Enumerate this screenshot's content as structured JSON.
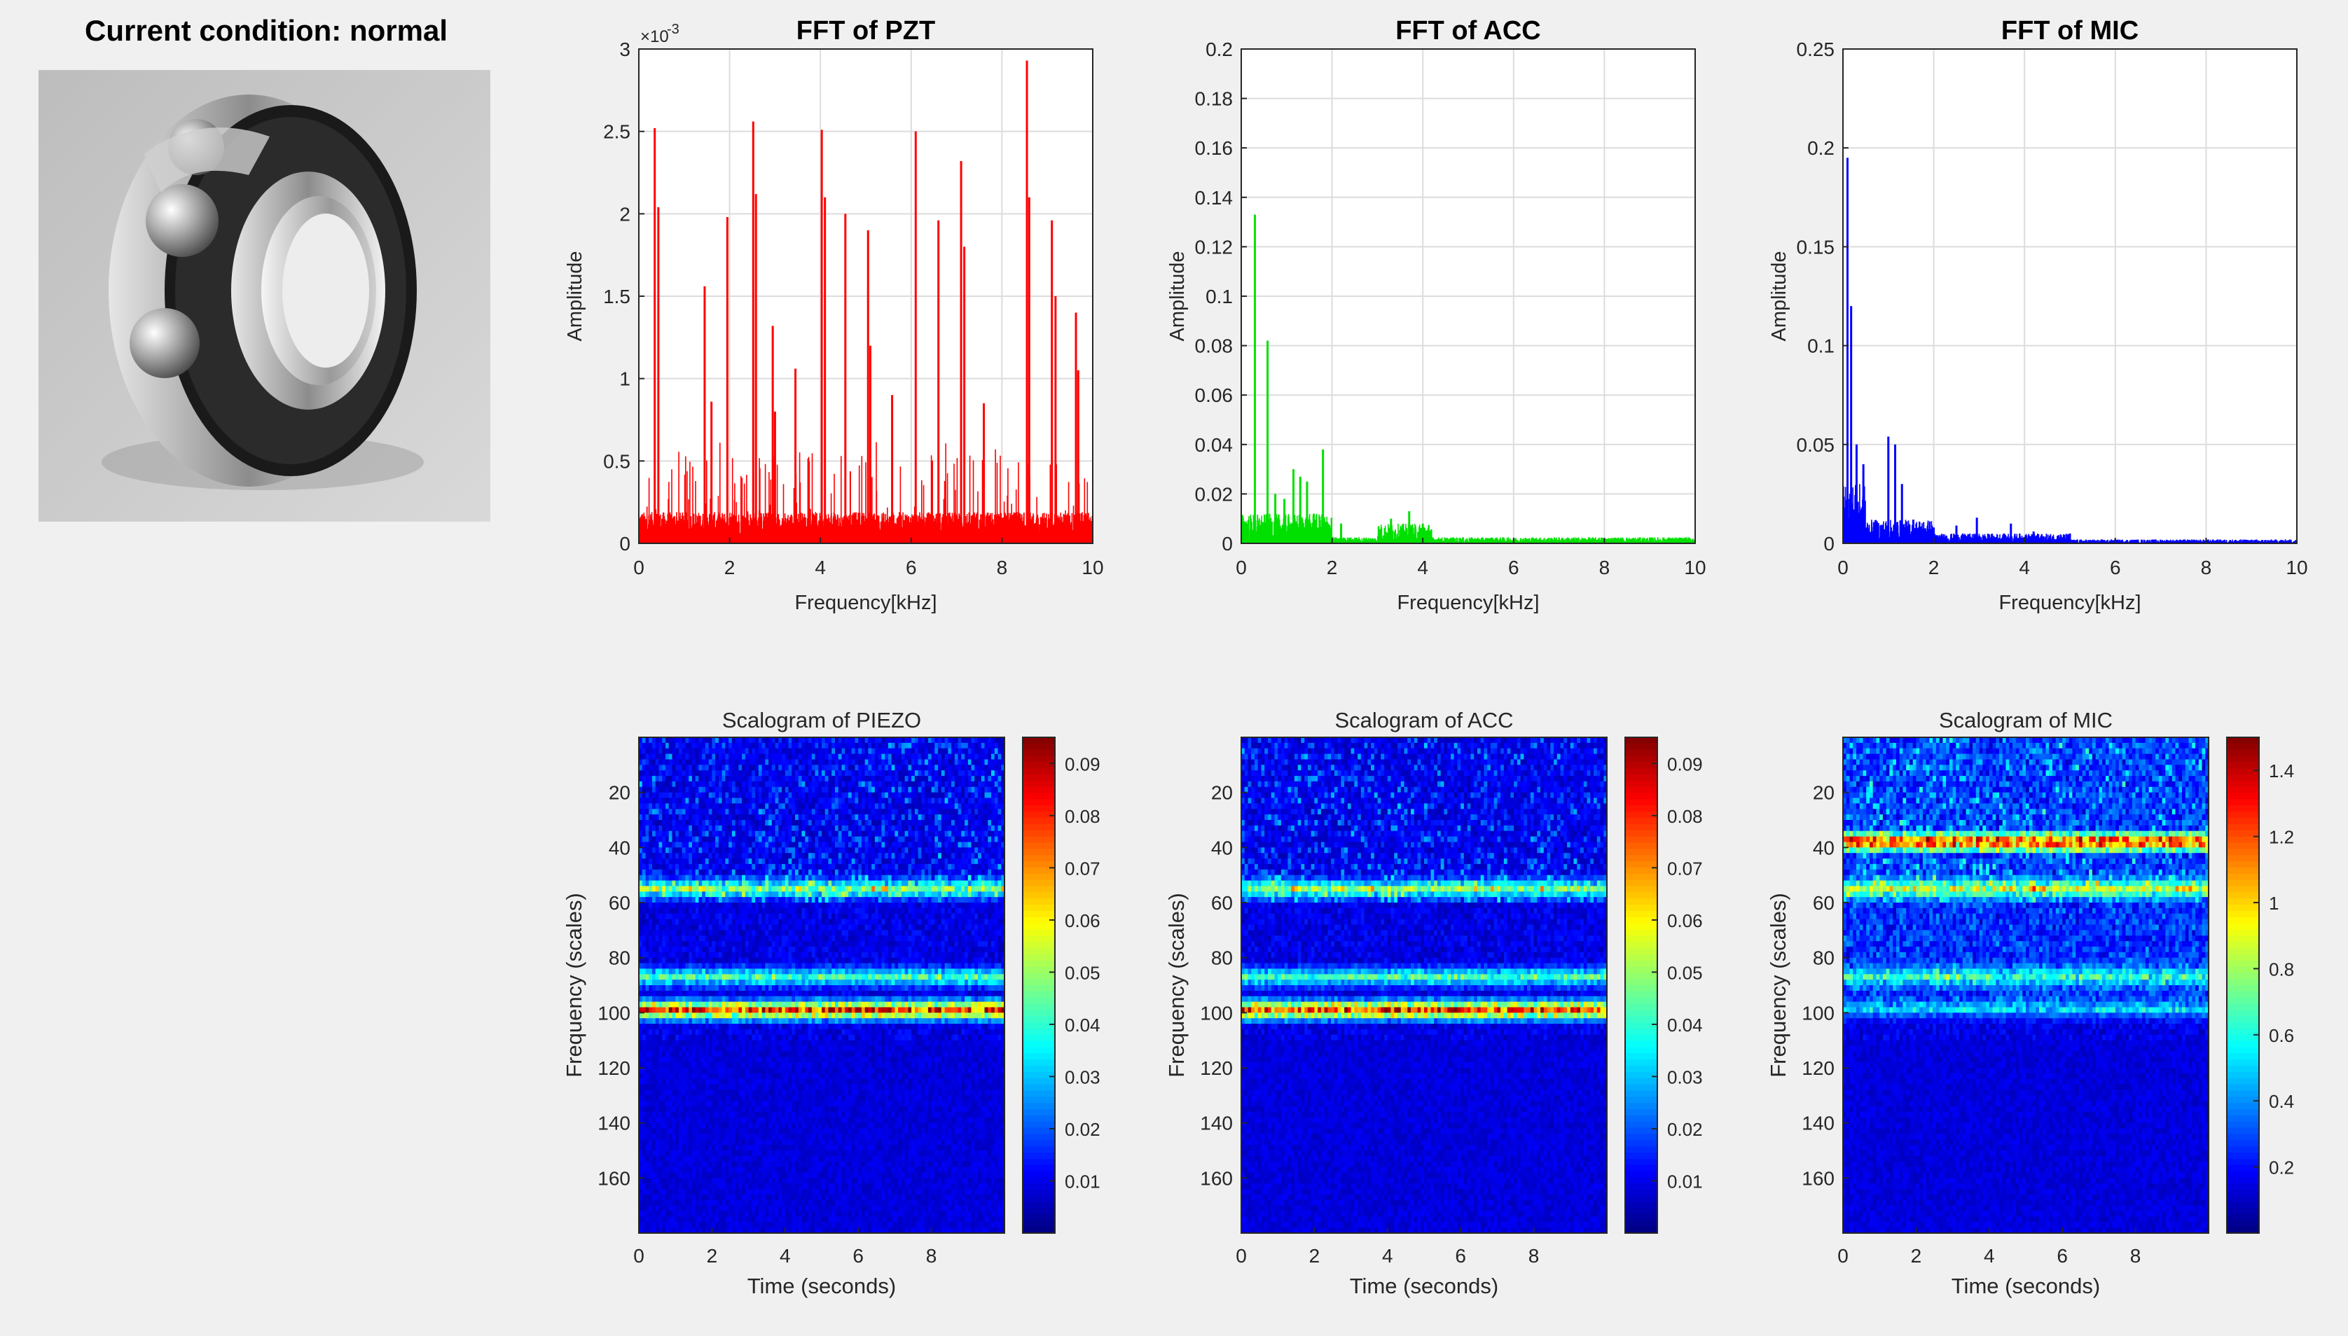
{
  "condition": {
    "label": "Current condition: normal"
  },
  "chart_data": [
    {
      "type": "line",
      "title": "FFT of PZT",
      "xlabel": "Frequency[kHz]",
      "ylabel": "Amplitude",
      "xlim": [
        0,
        10
      ],
      "ylim": [
        0,
        3
      ],
      "exponent_label": "×10",
      "exponent_power": "-3",
      "xticks": [
        0,
        2,
        4,
        6,
        8,
        10
      ],
      "yticks": [
        0,
        0.5,
        1,
        1.5,
        2,
        2.5,
        3
      ],
      "color": "#ff0000",
      "grid": true,
      "noise_floor": [
        0.1,
        0.45
      ],
      "peaks": [
        {
          "x": 0.35,
          "y": 2.52
        },
        {
          "x": 0.43,
          "y": 2.04
        },
        {
          "x": 1.45,
          "y": 1.56
        },
        {
          "x": 1.6,
          "y": 0.86
        },
        {
          "x": 1.95,
          "y": 1.98
        },
        {
          "x": 2.52,
          "y": 2.56
        },
        {
          "x": 2.58,
          "y": 2.12
        },
        {
          "x": 2.95,
          "y": 1.32
        },
        {
          "x": 3.0,
          "y": 0.8
        },
        {
          "x": 3.45,
          "y": 1.06
        },
        {
          "x": 4.03,
          "y": 2.51
        },
        {
          "x": 4.1,
          "y": 2.1
        },
        {
          "x": 4.55,
          "y": 2.0
        },
        {
          "x": 5.05,
          "y": 1.9
        },
        {
          "x": 5.1,
          "y": 1.2
        },
        {
          "x": 5.58,
          "y": 0.9
        },
        {
          "x": 6.1,
          "y": 2.5
        },
        {
          "x": 6.6,
          "y": 1.96
        },
        {
          "x": 7.1,
          "y": 2.32
        },
        {
          "x": 7.17,
          "y": 1.8
        },
        {
          "x": 7.6,
          "y": 0.85
        },
        {
          "x": 8.55,
          "y": 2.93
        },
        {
          "x": 8.6,
          "y": 2.1
        },
        {
          "x": 9.1,
          "y": 1.96
        },
        {
          "x": 9.18,
          "y": 1.5
        },
        {
          "x": 9.63,
          "y": 1.4
        },
        {
          "x": 9.68,
          "y": 1.05
        }
      ]
    },
    {
      "type": "line",
      "title": "FFT of ACC",
      "xlabel": "Frequency[kHz]",
      "ylabel": "Amplitude",
      "xlim": [
        0,
        10
      ],
      "ylim": [
        0,
        0.2
      ],
      "xticks": [
        0,
        2,
        4,
        6,
        8,
        10
      ],
      "yticks": [
        0,
        0.02,
        0.04,
        0.06,
        0.08,
        0.1,
        0.12,
        0.14,
        0.16,
        0.18,
        0.2
      ],
      "color": "#00e000",
      "grid": true,
      "peaks": [
        {
          "x": 0.3,
          "y": 0.133
        },
        {
          "x": 0.58,
          "y": 0.082
        },
        {
          "x": 0.75,
          "y": 0.02
        },
        {
          "x": 0.95,
          "y": 0.018
        },
        {
          "x": 1.15,
          "y": 0.03
        },
        {
          "x": 1.3,
          "y": 0.027
        },
        {
          "x": 1.45,
          "y": 0.025
        },
        {
          "x": 1.6,
          "y": 0.012
        },
        {
          "x": 1.8,
          "y": 0.038
        },
        {
          "x": 2.2,
          "y": 0.008
        },
        {
          "x": 3.3,
          "y": 0.01
        },
        {
          "x": 3.7,
          "y": 0.013
        },
        {
          "x": 4.0,
          "y": 0.008
        }
      ]
    },
    {
      "type": "line",
      "title": "FFT of MIC",
      "xlabel": "Frequency[kHz]",
      "ylabel": "Amplitude",
      "xlim": [
        0,
        10
      ],
      "ylim": [
        0,
        0.25
      ],
      "xticks": [
        0,
        2,
        4,
        6,
        8,
        10
      ],
      "yticks": [
        0,
        0.05,
        0.1,
        0.15,
        0.2,
        0.25
      ],
      "color": "#0000ff",
      "grid": true,
      "peaks": [
        {
          "x": 0.1,
          "y": 0.195
        },
        {
          "x": 0.18,
          "y": 0.12
        },
        {
          "x": 0.3,
          "y": 0.05
        },
        {
          "x": 0.45,
          "y": 0.04
        },
        {
          "x": 1.0,
          "y": 0.054
        },
        {
          "x": 1.15,
          "y": 0.05
        },
        {
          "x": 1.3,
          "y": 0.03
        },
        {
          "x": 1.55,
          "y": 0.012
        },
        {
          "x": 2.0,
          "y": 0.008
        },
        {
          "x": 2.5,
          "y": 0.009
        },
        {
          "x": 2.95,
          "y": 0.013
        },
        {
          "x": 3.7,
          "y": 0.01
        },
        {
          "x": 4.2,
          "y": 0.006
        },
        {
          "x": 5.0,
          "y": 0.005
        }
      ]
    },
    {
      "type": "heatmap",
      "title": "Scalogram of PIEZO",
      "xlabel": "Time (seconds)",
      "ylabel": "Frequency (scales)",
      "xlim": [
        0,
        10
      ],
      "ylim": [
        0,
        180
      ],
      "y_reversed": true,
      "xticks": [
        0,
        2,
        4,
        6,
        8
      ],
      "yticks": [
        20,
        40,
        60,
        80,
        100,
        120,
        140,
        160
      ],
      "colorbar_ticks": [
        0.01,
        0.02,
        0.03,
        0.04,
        0.05,
        0.06,
        0.07,
        0.08,
        0.09
      ],
      "colorbar_range": [
        0,
        0.095
      ],
      "bands": [
        {
          "scale": 99,
          "level": 0.85
        },
        {
          "scale": 55,
          "level": 0.45
        },
        {
          "scale": 87,
          "level": 0.4
        }
      ]
    },
    {
      "type": "heatmap",
      "title": "Scalogram of ACC",
      "xlabel": "Time (seconds)",
      "ylabel": "Frequency (scales)",
      "xlim": [
        0,
        10
      ],
      "ylim": [
        0,
        180
      ],
      "y_reversed": true,
      "xticks": [
        0,
        2,
        4,
        6,
        8
      ],
      "yticks": [
        20,
        40,
        60,
        80,
        100,
        120,
        140,
        160
      ],
      "colorbar_ticks": [
        0.01,
        0.02,
        0.03,
        0.04,
        0.05,
        0.06,
        0.07,
        0.08,
        0.09
      ],
      "colorbar_range": [
        0,
        0.095
      ],
      "bands": [
        {
          "scale": 99,
          "level": 0.85
        },
        {
          "scale": 55,
          "level": 0.45
        },
        {
          "scale": 87,
          "level": 0.4
        }
      ]
    },
    {
      "type": "heatmap",
      "title": "Scalogram of MIC",
      "xlabel": "Time (seconds)",
      "ylabel": "Frequency (scales)",
      "xlim": [
        0,
        10
      ],
      "ylim": [
        0,
        180
      ],
      "y_reversed": true,
      "xticks": [
        0,
        2,
        4,
        6,
        8
      ],
      "yticks": [
        20,
        40,
        60,
        80,
        100,
        120,
        140,
        160
      ],
      "colorbar_ticks": [
        0.2,
        0.4,
        0.6,
        0.8,
        1,
        1.2,
        1.4
      ],
      "colorbar_range": [
        0,
        1.5
      ],
      "bands": [
        {
          "scale": 38,
          "level": 0.8
        },
        {
          "scale": 55,
          "level": 0.45
        },
        {
          "scale": 87,
          "level": 0.3
        },
        {
          "scale": 99,
          "level": 0.2
        }
      ]
    }
  ]
}
